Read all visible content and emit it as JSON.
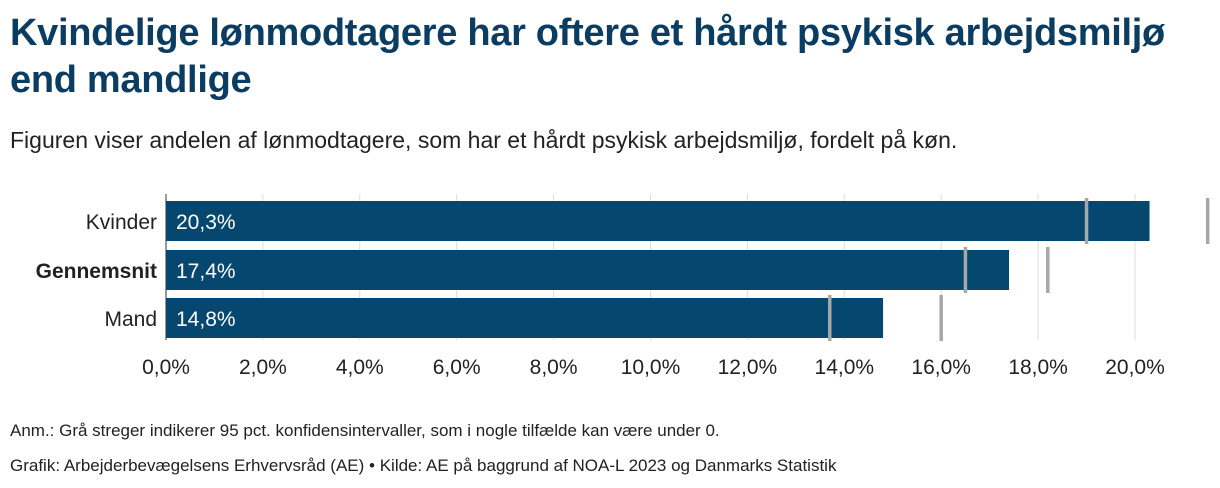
{
  "title": "Kvindelige lønmodtagere har oftere et hårdt psykisk arbejdsmiljø end mandlige",
  "subtitle": "Figuren viser andelen af lønmodtagere, som har et hårdt psykisk arbejdsmiljø, fordelt på køn.",
  "note": "Anm.: Grå streger indikerer 95 pct. konfidensintervaller, som i nogle tilfælde kan være under 0.",
  "credit": "Grafik: Arbejderbevægelsens Erhvervsråd (AE) • Kilde: AE på baggrund af NOA-L 2023 og Danmarks Statistik",
  "colors": {
    "bar": "#05476f",
    "title": "#0b3d62",
    "ci": "#a7a7a7",
    "grid": "#dddddd"
  },
  "chart_data": {
    "type": "bar",
    "orientation": "horizontal",
    "categories": [
      "Kvinder",
      "Gennemsnit",
      "Mand"
    ],
    "bold_categories": [
      "Gennemsnit"
    ],
    "values": [
      20.3,
      17.4,
      14.8
    ],
    "value_labels": [
      "20,3%",
      "17,4%",
      "14,8%"
    ],
    "ci": [
      [
        19.0,
        21.5
      ],
      [
        16.5,
        18.2
      ],
      [
        13.7,
        16.0
      ]
    ],
    "xlim": [
      0,
      20.6
    ],
    "xticks": [
      0,
      2,
      4,
      6,
      8,
      10,
      12,
      14,
      16,
      18,
      20
    ],
    "xtick_labels": [
      "0,0%",
      "2,0%",
      "4,0%",
      "6,0%",
      "8,0%",
      "10,0%",
      "12,0%",
      "14,0%",
      "16,0%",
      "18,0%",
      "20,0%"
    ],
    "grid": true,
    "legend": "none"
  }
}
